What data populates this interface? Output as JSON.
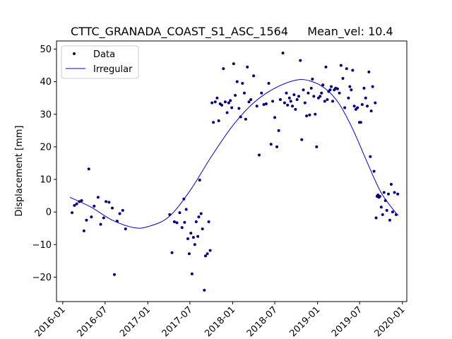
{
  "chart_data": {
    "type": "scatter",
    "title_left": "CTTC_GRANADA_COAST_S1_ASC_1564",
    "title_right": "Mean_vel: 10.4",
    "ylabel": "Displacement [mm]",
    "xlabel": "",
    "x_range": [
      "2015-12-05",
      "2020-01-20"
    ],
    "ylim": [
      -27.5,
      52.5
    ],
    "x_ticks": [
      "2016-01",
      "2016-07",
      "2017-01",
      "2017-07",
      "2018-01",
      "2018-07",
      "2019-01",
      "2019-07",
      "2020-01"
    ],
    "y_ticks": [
      -20,
      -10,
      0,
      10,
      20,
      30,
      40,
      50
    ],
    "grid": false,
    "legend": {
      "position": "top-left",
      "entries": [
        "Data",
        "Irregular"
      ]
    },
    "colors": {
      "data": "#000080",
      "fit": "#0000cd",
      "axes": "#000000"
    },
    "series": [
      {
        "name": "Data",
        "kind": "scatter",
        "points": [
          [
            "2016-02-10",
            -0.2
          ],
          [
            "2016-02-20",
            2
          ],
          [
            "2016-03-01",
            2.5
          ],
          [
            "2016-03-12",
            3.2
          ],
          [
            "2016-03-22",
            3.5
          ],
          [
            "2016-04-01",
            -5.8
          ],
          [
            "2016-04-12",
            -2.5
          ],
          [
            "2016-04-22",
            13.2
          ],
          [
            "2016-05-03",
            -1.5
          ],
          [
            "2016-05-15",
            1.8
          ],
          [
            "2016-06-01",
            4.5
          ],
          [
            "2016-06-12",
            -3.8
          ],
          [
            "2016-06-25",
            -1.8
          ],
          [
            "2016-07-05",
            3.2
          ],
          [
            "2016-07-18",
            3
          ],
          [
            "2016-08-01",
            1.2
          ],
          [
            "2016-08-10",
            -19.2
          ],
          [
            "2016-08-22",
            -2.8
          ],
          [
            "2016-09-02",
            -0.5
          ],
          [
            "2016-09-15",
            0.5
          ],
          [
            "2016-09-27",
            -5.2
          ],
          [
            "2017-04-05",
            -0.8
          ],
          [
            "2017-04-15",
            -12.5
          ],
          [
            "2017-04-25",
            -3
          ],
          [
            "2017-05-06",
            -3.3
          ],
          [
            "2017-05-18",
            -0.2
          ],
          [
            "2017-05-28",
            -4.8
          ],
          [
            "2017-06-05",
            4
          ],
          [
            "2017-06-08",
            -3.2
          ],
          [
            "2017-06-15",
            0.8
          ],
          [
            "2017-06-22",
            -8.2
          ],
          [
            "2017-06-28",
            -12.8
          ],
          [
            "2017-07-05",
            -6.5
          ],
          [
            "2017-07-10",
            -19
          ],
          [
            "2017-07-16",
            -7.8
          ],
          [
            "2017-07-22",
            -10
          ],
          [
            "2017-07-28",
            -3
          ],
          [
            "2017-08-04",
            -7.5
          ],
          [
            "2017-08-08",
            -1.5
          ],
          [
            "2017-08-12",
            9.8
          ],
          [
            "2017-08-18",
            -0.5
          ],
          [
            "2017-08-24",
            -5.2
          ],
          [
            "2017-09-01",
            -24
          ],
          [
            "2017-09-06",
            -13.5
          ],
          [
            "2017-09-14",
            -12.8
          ],
          [
            "2017-09-20",
            -3
          ],
          [
            "2017-09-26",
            -11.8
          ],
          [
            "2017-10-04",
            33.5
          ],
          [
            "2017-10-10",
            27.5
          ],
          [
            "2017-10-18",
            33.8
          ],
          [
            "2017-10-26",
            35
          ],
          [
            "2017-11-02",
            28
          ],
          [
            "2017-11-08",
            33.2
          ],
          [
            "2017-11-15",
            32.8
          ],
          [
            "2017-11-22",
            44
          ],
          [
            "2017-11-30",
            33.8
          ],
          [
            "2017-12-08",
            30.5
          ],
          [
            "2017-12-15",
            33.5
          ],
          [
            "2017-12-22",
            34.2
          ],
          [
            "2017-12-28",
            32
          ],
          [
            "2018-01-05",
            45.5
          ],
          [
            "2018-01-12",
            35.8
          ],
          [
            "2018-01-20",
            40
          ],
          [
            "2018-01-28",
            31.8
          ],
          [
            "2018-02-04",
            29.2
          ],
          [
            "2018-02-12",
            39.5
          ],
          [
            "2018-02-20",
            36.5
          ],
          [
            "2018-02-26",
            28.5
          ],
          [
            "2018-03-05",
            44.5
          ],
          [
            "2018-03-12",
            33.8
          ],
          [
            "2018-03-20",
            34.5
          ],
          [
            "2018-04-01",
            41.8
          ],
          [
            "2018-04-15",
            32.5
          ],
          [
            "2018-04-25",
            17.5
          ],
          [
            "2018-05-05",
            36.5
          ],
          [
            "2018-05-15",
            33
          ],
          [
            "2018-05-25",
            33.2
          ],
          [
            "2018-06-05",
            39.5
          ],
          [
            "2018-06-15",
            20.8
          ],
          [
            "2018-06-22",
            34
          ],
          [
            "2018-07-01",
            29
          ],
          [
            "2018-07-10",
            20
          ],
          [
            "2018-07-18",
            25
          ],
          [
            "2018-07-25",
            34.5
          ],
          [
            "2018-08-05",
            48.8
          ],
          [
            "2018-08-12",
            33.5
          ],
          [
            "2018-08-20",
            36.5
          ],
          [
            "2018-08-25",
            32.8
          ],
          [
            "2018-09-02",
            35
          ],
          [
            "2018-09-08",
            34
          ],
          [
            "2018-09-15",
            32.5
          ],
          [
            "2018-09-22",
            36
          ],
          [
            "2018-09-28",
            31.5
          ],
          [
            "2018-10-05",
            34.5
          ],
          [
            "2018-10-12",
            35.5
          ],
          [
            "2018-10-19",
            46.5
          ],
          [
            "2018-10-25",
            22.2
          ],
          [
            "2018-11-01",
            37.5
          ],
          [
            "2018-11-08",
            33.5
          ],
          [
            "2018-11-15",
            29.5
          ],
          [
            "2018-11-22",
            36.5
          ],
          [
            "2018-11-28",
            29.8
          ],
          [
            "2018-12-05",
            38
          ],
          [
            "2018-12-10",
            40.8
          ],
          [
            "2018-12-16",
            35.5
          ],
          [
            "2018-12-22",
            30
          ],
          [
            "2018-12-28",
            20
          ],
          [
            "2019-01-05",
            35
          ],
          [
            "2019-01-12",
            35.5
          ],
          [
            "2019-01-18",
            36.5
          ],
          [
            "2019-01-24",
            39
          ],
          [
            "2019-02-01",
            34
          ],
          [
            "2019-02-06",
            44.5
          ],
          [
            "2019-02-12",
            34.5
          ],
          [
            "2019-02-18",
            37
          ],
          [
            "2019-02-24",
            37.5
          ],
          [
            "2019-03-01",
            38.5
          ],
          [
            "2019-03-07",
            34
          ],
          [
            "2019-03-14",
            37.5
          ],
          [
            "2019-03-20",
            38
          ],
          [
            "2019-03-28",
            37.8
          ],
          [
            "2019-04-05",
            36.5
          ],
          [
            "2019-04-12",
            45
          ],
          [
            "2019-04-20",
            41
          ],
          [
            "2019-04-28",
            32
          ],
          [
            "2019-05-06",
            44
          ],
          [
            "2019-05-14",
            35
          ],
          [
            "2019-05-20",
            38.5
          ],
          [
            "2019-05-26",
            37.5
          ],
          [
            "2019-06-01",
            43.5
          ],
          [
            "2019-06-08",
            32.5
          ],
          [
            "2019-06-15",
            31.5
          ],
          [
            "2019-06-22",
            32
          ],
          [
            "2019-06-30",
            27.5
          ],
          [
            "2019-07-06",
            27.5
          ],
          [
            "2019-07-12",
            33
          ],
          [
            "2019-07-20",
            38
          ],
          [
            "2019-07-27",
            35
          ],
          [
            "2019-08-03",
            32.5
          ],
          [
            "2019-08-10",
            43
          ],
          [
            "2019-08-16",
            17
          ],
          [
            "2019-08-20",
            31
          ],
          [
            "2019-08-26",
            38.5
          ],
          [
            "2019-09-01",
            12.5
          ],
          [
            "2019-09-06",
            33.5
          ],
          [
            "2019-09-10",
            -1.8
          ],
          [
            "2019-09-14",
            4.8
          ],
          [
            "2019-09-18",
            5.2
          ],
          [
            "2019-09-22",
            4.5
          ],
          [
            "2019-09-26",
            4.8
          ],
          [
            "2019-10-02",
            1.5
          ],
          [
            "2019-10-08",
            -0.8
          ],
          [
            "2019-10-14",
            6
          ],
          [
            "2019-10-20",
            3.5
          ],
          [
            "2019-10-26",
            0.5
          ],
          [
            "2019-11-02",
            5.5
          ],
          [
            "2019-11-08",
            -2.5
          ],
          [
            "2019-11-14",
            8.5
          ],
          [
            "2019-11-20",
            0
          ],
          [
            "2019-11-28",
            6
          ],
          [
            "2019-12-05",
            -0.8
          ],
          [
            "2019-12-12",
            5.5
          ]
        ]
      },
      {
        "name": "Irregular",
        "kind": "line",
        "points": [
          [
            "2016-02-01",
            4.5
          ],
          [
            "2016-05-01",
            1.5
          ],
          [
            "2016-08-01",
            -2.5
          ],
          [
            "2016-11-01",
            -4.8
          ],
          [
            "2017-01-01",
            -4.5
          ],
          [
            "2017-04-01",
            -1.5
          ],
          [
            "2017-07-01",
            6.5
          ],
          [
            "2017-10-01",
            17
          ],
          [
            "2018-01-01",
            26.5
          ],
          [
            "2018-04-01",
            33.5
          ],
          [
            "2018-07-01",
            38
          ],
          [
            "2018-10-01",
            40.5
          ],
          [
            "2018-12-01",
            40.2
          ],
          [
            "2019-02-01",
            38
          ],
          [
            "2019-04-01",
            33.5
          ],
          [
            "2019-06-01",
            25.5
          ],
          [
            "2019-08-01",
            15.5
          ],
          [
            "2019-10-01",
            6
          ],
          [
            "2019-12-01",
            0
          ],
          [
            "2019-12-15",
            -1
          ]
        ]
      }
    ]
  }
}
